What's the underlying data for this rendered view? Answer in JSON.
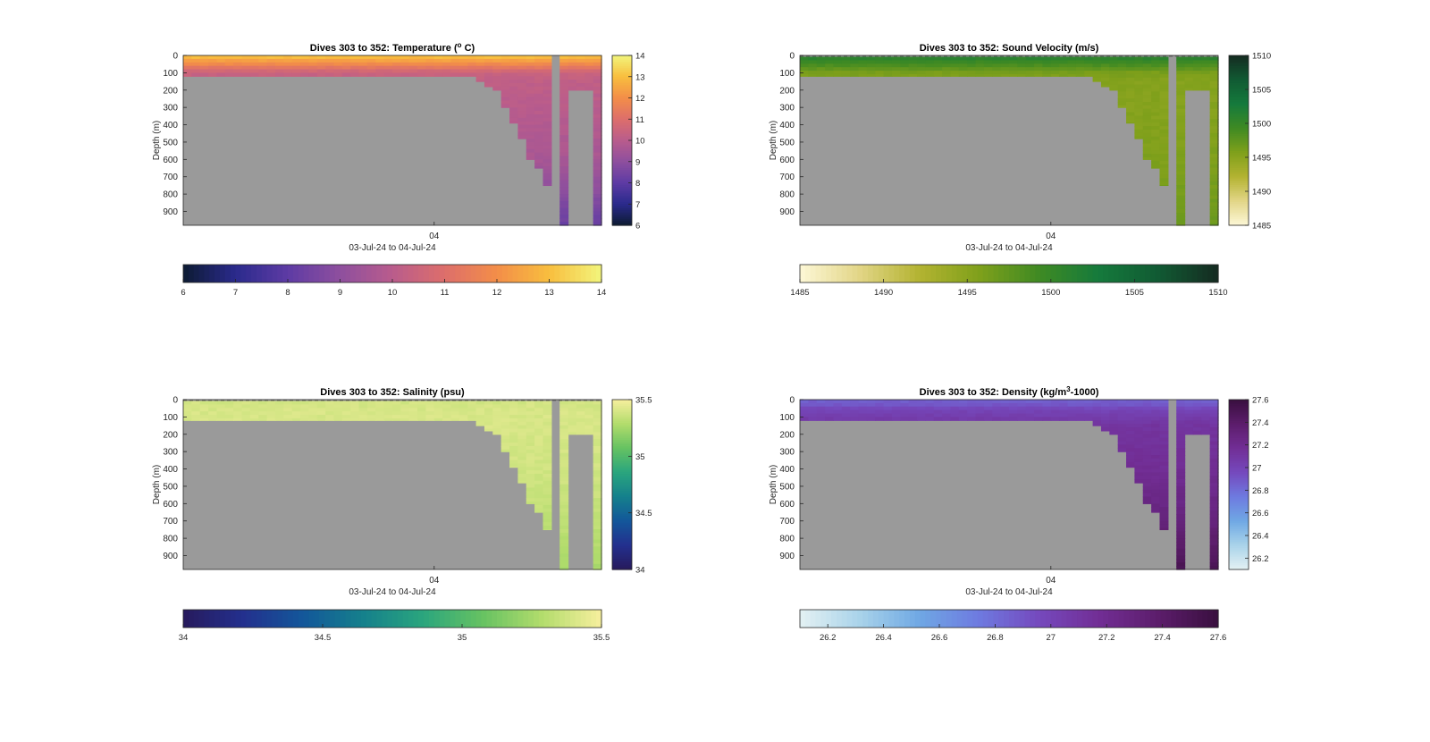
{
  "figure": {
    "background": "#ffffff"
  },
  "chart_data": [
    {
      "id": "temperature",
      "type": "heatmap",
      "title_parts": [
        "Dives 303 to 352: Temperature (",
        "o",
        " C)"
      ],
      "title_style": "sup",
      "ylabel": "Depth (m)",
      "xlabel": "03-Jul-24 to 04-Jul-24",
      "x_ticks": [
        "04"
      ],
      "y_ticks": [
        0,
        100,
        200,
        300,
        400,
        500,
        600,
        700,
        800,
        900
      ],
      "ylim": [
        0,
        980
      ],
      "num_dives": 50,
      "no_data_color": "#9a9a9a",
      "bottom_depth_m": [
        120,
        120,
        120,
        120,
        120,
        120,
        120,
        120,
        120,
        120,
        120,
        120,
        120,
        120,
        120,
        120,
        120,
        120,
        120,
        120,
        120,
        120,
        120,
        120,
        120,
        120,
        120,
        120,
        120,
        120,
        120,
        120,
        120,
        120,
        120,
        150,
        180,
        200,
        300,
        390,
        480,
        600,
        650,
        750,
        0,
        980,
        200,
        200,
        200,
        980
      ],
      "surface_gap_m": 0,
      "colorbar": {
        "min": 6,
        "max": 14,
        "ticks": [
          6,
          7,
          8,
          9,
          10,
          11,
          12,
          13,
          14
        ],
        "colors": [
          "#0d1b33",
          "#2a2a8c",
          "#5e3ba4",
          "#8e4f9e",
          "#b95c8c",
          "#dd6e6b",
          "#f38e48",
          "#f8be3e",
          "#f2f57c"
        ]
      },
      "profile": {
        "depths": [
          0,
          30,
          60,
          100,
          150,
          300,
          600,
          980
        ],
        "values": [
          13.2,
          12.4,
          11.6,
          10.4,
          10.2,
          10.0,
          9.6,
          8.2
        ]
      }
    },
    {
      "id": "sound_velocity",
      "type": "heatmap",
      "title_parts": [
        "Dives 303 to 352: Sound Velocity (m/s)"
      ],
      "title_style": "plain",
      "ylabel": "Depth (m)",
      "xlabel": "03-Jul-24 to 04-Jul-24",
      "x_ticks": [
        "04"
      ],
      "y_ticks": [
        0,
        100,
        200,
        300,
        400,
        500,
        600,
        700,
        800,
        900
      ],
      "ylim": [
        0,
        980
      ],
      "num_dives": 50,
      "no_data_color": "#9a9a9a",
      "bottom_depth_m": [
        120,
        120,
        120,
        120,
        120,
        120,
        120,
        120,
        120,
        120,
        120,
        120,
        120,
        120,
        120,
        120,
        120,
        120,
        120,
        120,
        120,
        120,
        120,
        120,
        120,
        120,
        120,
        120,
        120,
        120,
        120,
        120,
        120,
        120,
        120,
        150,
        180,
        200,
        300,
        390,
        480,
        600,
        650,
        750,
        0,
        980,
        200,
        200,
        200,
        980
      ],
      "surface_gap_m": 8,
      "colorbar": {
        "min": 1485,
        "max": 1510,
        "ticks": [
          1485,
          1490,
          1495,
          1500,
          1505,
          1510
        ],
        "colors": [
          "#fdf7d6",
          "#e2d586",
          "#b3b331",
          "#7fa01b",
          "#3f8a23",
          "#157a3c",
          "#115a33",
          "#152b21"
        ]
      },
      "profile": {
        "depths": [
          0,
          30,
          60,
          100,
          150,
          300,
          600,
          980
        ],
        "values": [
          1502,
          1500,
          1498.5,
          1496,
          1495.3,
          1495.3,
          1495.7,
          1496.8
        ]
      }
    },
    {
      "id": "salinity",
      "type": "heatmap",
      "title_parts": [
        "Dives 303 to 352: Salinity (psu)"
      ],
      "title_style": "plain",
      "ylabel": "Depth (m)",
      "xlabel": "03-Jul-24 to 04-Jul-24",
      "x_ticks": [
        "04"
      ],
      "y_ticks": [
        0,
        100,
        200,
        300,
        400,
        500,
        600,
        700,
        800,
        900
      ],
      "ylim": [
        0,
        980
      ],
      "num_dives": 50,
      "no_data_color": "#9a9a9a",
      "bottom_depth_m": [
        120,
        120,
        120,
        120,
        120,
        120,
        120,
        120,
        120,
        120,
        120,
        120,
        120,
        120,
        120,
        120,
        120,
        120,
        120,
        120,
        120,
        120,
        120,
        120,
        120,
        120,
        120,
        120,
        120,
        120,
        120,
        120,
        120,
        120,
        120,
        150,
        180,
        200,
        300,
        390,
        480,
        600,
        650,
        750,
        0,
        980,
        200,
        200,
        200,
        980
      ],
      "surface_gap_m": 8,
      "colorbar": {
        "min": 34,
        "max": 35.5,
        "ticks": [
          34,
          34.5,
          35,
          35.5
        ],
        "colors": [
          "#271a5c",
          "#23308e",
          "#13579a",
          "#15808c",
          "#2aa57e",
          "#66c262",
          "#b2dc6c",
          "#f7ef9e"
        ]
      },
      "profile": {
        "depths": [
          0,
          60,
          150,
          400,
          700,
          980
        ],
        "values": [
          35.38,
          35.4,
          35.4,
          35.38,
          35.33,
          35.26
        ]
      }
    },
    {
      "id": "density",
      "type": "heatmap",
      "title_parts": [
        "Dives 303 to 352: Density (kg/m",
        "3",
        "-1000)"
      ],
      "title_style": "sup",
      "ylabel": "Depth (m)",
      "xlabel": "03-Jul-24 to 04-Jul-24",
      "x_ticks": [
        "04"
      ],
      "y_ticks": [
        0,
        100,
        200,
        300,
        400,
        500,
        600,
        700,
        800,
        900
      ],
      "ylim": [
        0,
        980
      ],
      "num_dives": 50,
      "no_data_color": "#9a9a9a",
      "bottom_depth_m": [
        120,
        120,
        120,
        120,
        120,
        120,
        120,
        120,
        120,
        120,
        120,
        120,
        120,
        120,
        120,
        120,
        120,
        120,
        120,
        120,
        120,
        120,
        120,
        120,
        120,
        120,
        120,
        120,
        120,
        120,
        120,
        120,
        120,
        120,
        120,
        150,
        180,
        200,
        300,
        390,
        480,
        600,
        650,
        750,
        0,
        980,
        200,
        200,
        200,
        980
      ],
      "surface_gap_m": 0,
      "colorbar": {
        "min": 26.1,
        "max": 27.6,
        "ticks": [
          26.2,
          26.4,
          26.6,
          26.8,
          27,
          27.2,
          27.4,
          27.6
        ],
        "colors": [
          "#e4f1f3",
          "#a9d3ea",
          "#6fa8e4",
          "#6e7ae0",
          "#7549bd",
          "#722e95",
          "#5c1d6b",
          "#3a0f3f"
        ]
      },
      "profile": {
        "depths": [
          0,
          30,
          60,
          100,
          150,
          400,
          700,
          980
        ],
        "values": [
          26.85,
          26.9,
          27.0,
          27.05,
          27.12,
          27.18,
          27.3,
          27.5
        ]
      }
    }
  ]
}
